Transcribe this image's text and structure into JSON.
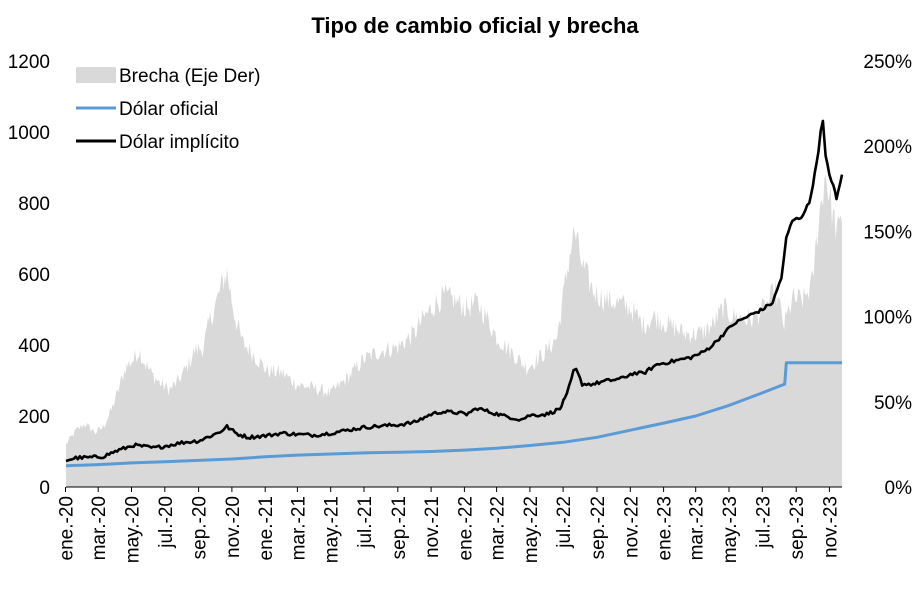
{
  "chart_data": {
    "type": "line",
    "title": "Tipo de cambio oficial y brecha",
    "legend_position": "top-left",
    "left_axis": {
      "ylim": [
        0,
        1200
      ],
      "ticks": [
        "0",
        "200",
        "400",
        "600",
        "800",
        "1000",
        "1200"
      ]
    },
    "right_axis": {
      "ylim": [
        0,
        250
      ],
      "ticks": [
        "0%",
        "50%",
        "100%",
        "150%",
        "200%",
        "250%"
      ]
    },
    "x_range": [
      "2020-01-02",
      "2023-11-24"
    ],
    "x_ticks": [
      {
        "label": "ene.-20",
        "date": "2020-01-01"
      },
      {
        "label": "mar.-20",
        "date": "2020-03-01"
      },
      {
        "label": "may.-20",
        "date": "2020-05-01"
      },
      {
        "label": "jul.-20",
        "date": "2020-07-01"
      },
      {
        "label": "sep.-20",
        "date": "2020-09-01"
      },
      {
        "label": "nov.-20",
        "date": "2020-11-01"
      },
      {
        "label": "ene.-21",
        "date": "2021-01-01"
      },
      {
        "label": "mar.-21",
        "date": "2021-03-01"
      },
      {
        "label": "may.-21",
        "date": "2021-05-01"
      },
      {
        "label": "jul.-21",
        "date": "2021-07-01"
      },
      {
        "label": "sep.-21",
        "date": "2021-09-01"
      },
      {
        "label": "nov.-21",
        "date": "2021-11-01"
      },
      {
        "label": "ene.-22",
        "date": "2022-01-01"
      },
      {
        "label": "mar.-22",
        "date": "2022-03-01"
      },
      {
        "label": "may.-22",
        "date": "2022-05-01"
      },
      {
        "label": "jul.-22",
        "date": "2022-07-01"
      },
      {
        "label": "sep.-22",
        "date": "2022-09-01"
      },
      {
        "label": "nov.-22",
        "date": "2022-11-01"
      },
      {
        "label": "ene.-23",
        "date": "2023-01-01"
      },
      {
        "label": "mar.-23",
        "date": "2023-03-01"
      },
      {
        "label": "may.-23",
        "date": "2023-05-01"
      },
      {
        "label": "jul.-23",
        "date": "2023-07-01"
      },
      {
        "label": "sep.-23",
        "date": "2023-09-01"
      },
      {
        "label": "nov.-23",
        "date": "2023-11-01"
      }
    ],
    "series": [
      {
        "name": "Brecha (Eje Der)",
        "axis": "right",
        "kind": "area",
        "color": "#d9d9d9",
        "unit": "%",
        "points": [
          [
            "2020-01-02",
            25
          ],
          [
            "2020-01-20",
            33
          ],
          [
            "2020-02-05",
            37
          ],
          [
            "2020-02-25",
            32
          ],
          [
            "2020-03-10",
            35
          ],
          [
            "2020-03-25",
            45
          ],
          [
            "2020-04-05",
            55
          ],
          [
            "2020-04-20",
            70
          ],
          [
            "2020-05-05",
            75
          ],
          [
            "2020-05-15",
            80
          ],
          [
            "2020-05-25",
            73
          ],
          [
            "2020-06-10",
            65
          ],
          [
            "2020-06-25",
            60
          ],
          [
            "2020-07-10",
            57
          ],
          [
            "2020-07-25",
            62
          ],
          [
            "2020-08-10",
            70
          ],
          [
            "2020-08-25",
            80
          ],
          [
            "2020-09-10",
            82
          ],
          [
            "2020-09-20",
            96
          ],
          [
            "2020-10-05",
            110
          ],
          [
            "2020-10-15",
            120
          ],
          [
            "2020-10-23",
            126
          ],
          [
            "2020-11-05",
            102
          ],
          [
            "2020-11-20",
            85
          ],
          [
            "2020-12-10",
            78
          ],
          [
            "2021-01-05",
            68
          ],
          [
            "2021-02-01",
            67
          ],
          [
            "2021-03-01",
            60
          ],
          [
            "2021-04-01",
            58
          ],
          [
            "2021-05-01",
            55
          ],
          [
            "2021-06-01",
            64
          ],
          [
            "2021-07-01",
            75
          ],
          [
            "2021-08-01",
            80
          ],
          [
            "2021-09-01",
            82
          ],
          [
            "2021-10-01",
            90
          ],
          [
            "2021-10-20",
            100
          ],
          [
            "2021-11-10",
            108
          ],
          [
            "2021-11-25",
            112
          ],
          [
            "2021-12-10",
            110
          ],
          [
            "2022-01-05",
            105
          ],
          [
            "2022-01-25",
            108
          ],
          [
            "2022-02-10",
            100
          ],
          [
            "2022-03-01",
            88
          ],
          [
            "2022-04-01",
            78
          ],
          [
            "2022-04-25",
            70
          ],
          [
            "2022-05-15",
            75
          ],
          [
            "2022-06-01",
            80
          ],
          [
            "2022-06-20",
            88
          ],
          [
            "2022-07-05",
            120
          ],
          [
            "2022-07-15",
            140
          ],
          [
            "2022-07-22",
            150
          ],
          [
            "2022-08-05",
            130
          ],
          [
            "2022-08-25",
            115
          ],
          [
            "2022-09-15",
            110
          ],
          [
            "2022-10-10",
            108
          ],
          [
            "2022-11-01",
            105
          ],
          [
            "2022-11-25",
            95
          ],
          [
            "2022-12-15",
            100
          ],
          [
            "2023-01-10",
            95
          ],
          [
            "2023-02-10",
            90
          ],
          [
            "2023-03-10",
            90
          ],
          [
            "2023-04-01",
            95
          ],
          [
            "2023-04-20",
            105
          ],
          [
            "2023-05-10",
            100
          ],
          [
            "2023-06-10",
            98
          ],
          [
            "2023-07-05",
            105
          ],
          [
            "2023-07-25",
            115
          ],
          [
            "2023-08-10",
            95
          ],
          [
            "2023-08-25",
            110
          ],
          [
            "2023-09-15",
            110
          ],
          [
            "2023-10-01",
            120
          ],
          [
            "2023-10-10",
            150
          ],
          [
            "2023-10-18",
            170
          ],
          [
            "2023-10-25",
            185
          ],
          [
            "2023-11-01",
            170
          ],
          [
            "2023-11-10",
            155
          ],
          [
            "2023-11-17",
            150
          ],
          [
            "2023-11-24",
            155
          ]
        ]
      },
      {
        "name": "Dólar oficial",
        "axis": "left",
        "kind": "line",
        "color": "#5b9bd5",
        "points": [
          [
            "2020-01-02",
            60
          ],
          [
            "2020-03-01",
            63
          ],
          [
            "2020-05-01",
            68
          ],
          [
            "2020-07-01",
            71
          ],
          [
            "2020-09-01",
            75
          ],
          [
            "2020-11-01",
            79
          ],
          [
            "2021-01-01",
            85
          ],
          [
            "2021-03-01",
            90
          ],
          [
            "2021-05-01",
            93
          ],
          [
            "2021-07-01",
            96
          ],
          [
            "2021-09-01",
            98
          ],
          [
            "2021-11-01",
            100
          ],
          [
            "2022-01-01",
            104
          ],
          [
            "2022-03-01",
            109
          ],
          [
            "2022-05-01",
            117
          ],
          [
            "2022-07-01",
            126
          ],
          [
            "2022-09-01",
            140
          ],
          [
            "2022-11-01",
            160
          ],
          [
            "2023-01-01",
            180
          ],
          [
            "2023-03-01",
            200
          ],
          [
            "2023-05-01",
            230
          ],
          [
            "2023-07-01",
            265
          ],
          [
            "2023-08-11",
            290
          ],
          [
            "2023-08-14",
            350
          ],
          [
            "2023-11-24",
            350
          ]
        ]
      },
      {
        "name": "Dólar implícito",
        "axis": "left",
        "kind": "line",
        "color": "#000000",
        "points": [
          [
            "2020-01-02",
            75
          ],
          [
            "2020-01-20",
            82
          ],
          [
            "2020-02-15",
            83
          ],
          [
            "2020-03-10",
            86
          ],
          [
            "2020-04-01",
            100
          ],
          [
            "2020-05-05",
            118
          ],
          [
            "2020-05-20",
            115
          ],
          [
            "2020-06-10",
            110
          ],
          [
            "2020-07-01",
            115
          ],
          [
            "2020-08-01",
            125
          ],
          [
            "2020-09-01",
            130
          ],
          [
            "2020-09-25",
            145
          ],
          [
            "2020-10-10",
            155
          ],
          [
            "2020-10-23",
            170
          ],
          [
            "2020-11-10",
            150
          ],
          [
            "2020-12-01",
            140
          ],
          [
            "2021-01-05",
            145
          ],
          [
            "2021-02-01",
            152
          ],
          [
            "2021-03-01",
            148
          ],
          [
            "2021-04-01",
            146
          ],
          [
            "2021-05-01",
            152
          ],
          [
            "2021-06-01",
            160
          ],
          [
            "2021-07-01",
            168
          ],
          [
            "2021-08-01",
            172
          ],
          [
            "2021-09-01",
            175
          ],
          [
            "2021-10-01",
            182
          ],
          [
            "2021-11-01",
            205
          ],
          [
            "2021-11-20",
            212
          ],
          [
            "2021-12-15",
            210
          ],
          [
            "2022-01-05",
            205
          ],
          [
            "2022-01-25",
            222
          ],
          [
            "2022-02-15",
            212
          ],
          [
            "2022-03-15",
            200
          ],
          [
            "2022-04-15",
            190
          ],
          [
            "2022-05-01",
            202
          ],
          [
            "2022-06-01",
            205
          ],
          [
            "2022-06-25",
            220
          ],
          [
            "2022-07-08",
            260
          ],
          [
            "2022-07-20",
            325
          ],
          [
            "2022-07-25",
            330
          ],
          [
            "2022-08-05",
            290
          ],
          [
            "2022-08-25",
            290
          ],
          [
            "2022-09-15",
            298
          ],
          [
            "2022-10-15",
            305
          ],
          [
            "2022-11-05",
            320
          ],
          [
            "2022-11-25",
            320
          ],
          [
            "2022-12-20",
            345
          ],
          [
            "2023-01-20",
            355
          ],
          [
            "2023-02-20",
            365
          ],
          [
            "2023-03-15",
            380
          ],
          [
            "2023-04-01",
            400
          ],
          [
            "2023-04-20",
            430
          ],
          [
            "2023-05-10",
            460
          ],
          [
            "2023-06-10",
            485
          ],
          [
            "2023-07-01",
            500
          ],
          [
            "2023-07-20",
            520
          ],
          [
            "2023-08-05",
            590
          ],
          [
            "2023-08-14",
            700
          ],
          [
            "2023-08-25",
            750
          ],
          [
            "2023-09-10",
            760
          ],
          [
            "2023-09-25",
            800
          ],
          [
            "2023-10-05",
            880
          ],
          [
            "2023-10-12",
            950
          ],
          [
            "2023-10-16",
            1000
          ],
          [
            "2023-10-20",
            1030
          ],
          [
            "2023-10-25",
            930
          ],
          [
            "2023-11-01",
            880
          ],
          [
            "2023-11-08",
            850
          ],
          [
            "2023-11-14",
            810
          ],
          [
            "2023-11-24",
            880
          ]
        ]
      }
    ]
  }
}
